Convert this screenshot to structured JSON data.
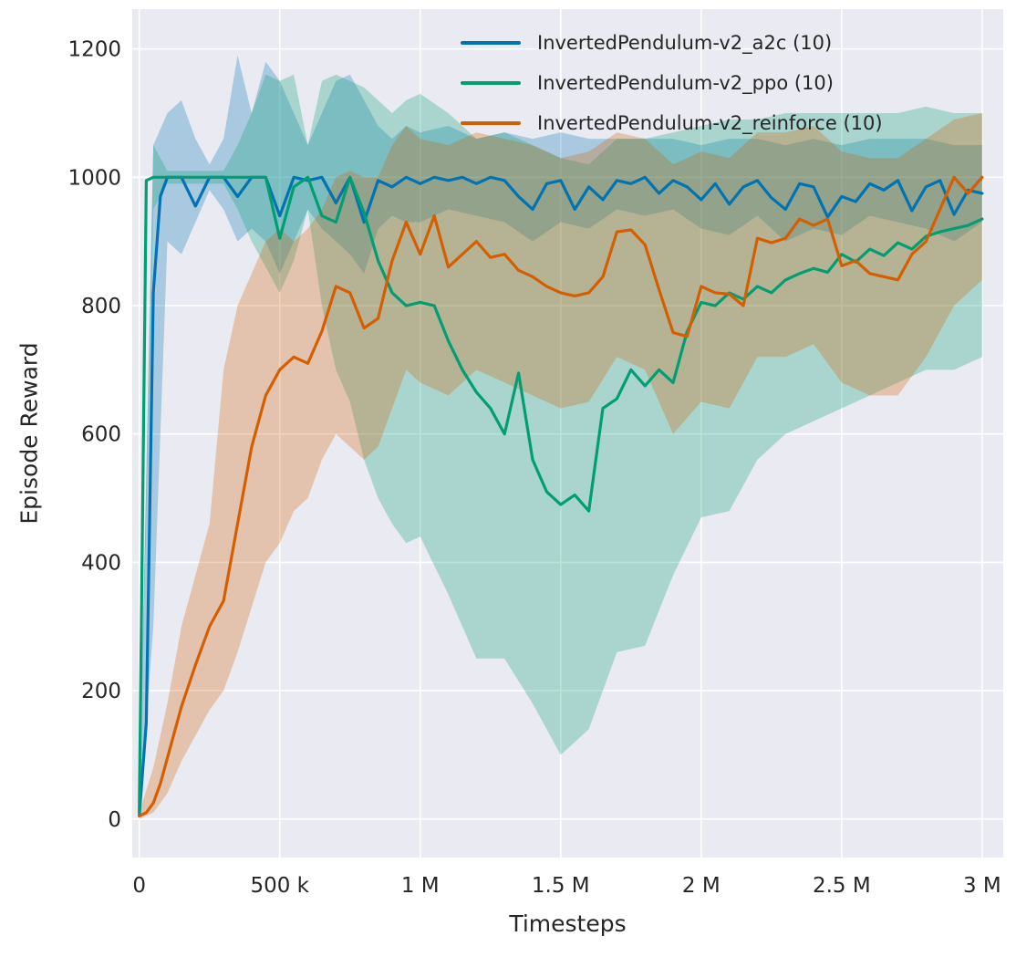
{
  "chart_data": {
    "type": "line",
    "title": "",
    "xlabel": "Timesteps",
    "ylabel": "Episode Reward",
    "xlim": [
      -25000,
      3075000
    ],
    "ylim": [
      -60,
      1262
    ],
    "grid": true,
    "legend_position": "upper center",
    "plot_background": "#eaeaf2",
    "grid_color": "#ffffff",
    "text_color": "#262626",
    "x_unit": 1000,
    "x_ticks": [
      {
        "value": 0,
        "label": "0"
      },
      {
        "value": 500000,
        "label": "500 k"
      },
      {
        "value": 1000000,
        "label": "1 M"
      },
      {
        "value": 1500000,
        "label": "1.5 M"
      },
      {
        "value": 2000000,
        "label": "2 M"
      },
      {
        "value": 2500000,
        "label": "2.5 M"
      },
      {
        "value": 3000000,
        "label": "3 M"
      }
    ],
    "y_ticks": [
      {
        "value": 0,
        "label": "0"
      },
      {
        "value": 200,
        "label": "200"
      },
      {
        "value": 400,
        "label": "400"
      },
      {
        "value": 600,
        "label": "600"
      },
      {
        "value": 800,
        "label": "800"
      },
      {
        "value": 1000,
        "label": "1000"
      },
      {
        "value": 1200,
        "label": "1200"
      }
    ],
    "series": [
      {
        "name": "InvertedPendulum-v2_a2c (10)",
        "color": "#0173b2",
        "line_width": 3.2,
        "band_opacity": 0.28,
        "x_k": [
          0,
          25,
          50,
          75,
          100,
          150,
          200,
          250,
          300,
          350,
          400,
          450,
          500,
          550,
          600,
          650,
          700,
          750,
          800,
          850,
          900,
          950,
          1000,
          1050,
          1100,
          1150,
          1200,
          1250,
          1300,
          1350,
          1400,
          1450,
          1500,
          1550,
          1600,
          1650,
          1700,
          1750,
          1800,
          1850,
          1900,
          1950,
          2000,
          2050,
          2100,
          2150,
          2200,
          2250,
          2300,
          2350,
          2400,
          2450,
          2500,
          2550,
          2600,
          2650,
          2700,
          2750,
          2800,
          2850,
          2900,
          2950,
          3000
        ],
        "y": [
          5,
          150,
          820,
          970,
          1000,
          1000,
          955,
          1000,
          1000,
          970,
          1000,
          1000,
          940,
          1000,
          995,
          1000,
          960,
          1000,
          930,
          995,
          985,
          1000,
          990,
          1000,
          995,
          1000,
          990,
          1000,
          995,
          970,
          950,
          990,
          995,
          950,
          985,
          965,
          995,
          990,
          1000,
          975,
          995,
          985,
          965,
          990,
          958,
          985,
          995,
          968,
          950,
          990,
          985,
          938,
          970,
          962,
          990,
          980,
          995,
          948,
          985,
          995,
          942,
          980,
          975
        ],
        "band": {
          "x_k": [
            0,
            50,
            100,
            150,
            200,
            250,
            300,
            350,
            400,
            450,
            500,
            550,
            600,
            650,
            700,
            750,
            800,
            850,
            900,
            950,
            1000,
            1100,
            1200,
            1300,
            1400,
            1500,
            1600,
            1700,
            1800,
            1900,
            2000,
            2100,
            2200,
            2300,
            2400,
            2500,
            2600,
            2700,
            2800,
            2900,
            3000
          ],
          "lo": [
            0,
            300,
            900,
            880,
            930,
            980,
            950,
            900,
            920,
            900,
            850,
            900,
            950,
            920,
            900,
            880,
            850,
            920,
            940,
            930,
            930,
            950,
            940,
            930,
            900,
            930,
            920,
            950,
            940,
            950,
            920,
            910,
            940,
            900,
            920,
            910,
            940,
            930,
            920,
            900,
            930
          ],
          "hi": [
            10,
            1050,
            1100,
            1120,
            1060,
            1020,
            1060,
            1190,
            1100,
            1180,
            1150,
            1100,
            1050,
            1100,
            1150,
            1160,
            1120,
            1080,
            1060,
            1080,
            1070,
            1080,
            1060,
            1070,
            1060,
            1070,
            1060,
            1060,
            1060,
            1060,
            1050,
            1060,
            1060,
            1050,
            1060,
            1050,
            1060,
            1060,
            1060,
            1050,
            1050
          ]
        }
      },
      {
        "name": "InvertedPendulum-v2_ppo (10)",
        "color": "#029e73",
        "line_width": 3.2,
        "band_opacity": 0.28,
        "x_k": [
          0,
          25,
          50,
          75,
          100,
          150,
          200,
          250,
          300,
          350,
          400,
          450,
          500,
          550,
          600,
          650,
          700,
          750,
          800,
          850,
          900,
          950,
          1000,
          1050,
          1100,
          1150,
          1200,
          1250,
          1300,
          1350,
          1400,
          1450,
          1500,
          1550,
          1600,
          1650,
          1700,
          1750,
          1800,
          1850,
          1900,
          1950,
          2000,
          2050,
          2100,
          2150,
          2200,
          2250,
          2300,
          2350,
          2400,
          2450,
          2500,
          2550,
          2600,
          2650,
          2700,
          2750,
          2800,
          2850,
          2900,
          2950,
          3000
        ],
        "y": [
          10,
          995,
          1000,
          1000,
          1000,
          1000,
          1000,
          1000,
          1000,
          1000,
          1000,
          1000,
          905,
          985,
          1000,
          940,
          930,
          1000,
          945,
          870,
          820,
          800,
          805,
          800,
          745,
          700,
          665,
          640,
          600,
          695,
          560,
          510,
          490,
          505,
          480,
          640,
          655,
          700,
          675,
          700,
          680,
          760,
          805,
          800,
          820,
          810,
          830,
          820,
          840,
          850,
          858,
          852,
          880,
          868,
          888,
          878,
          898,
          888,
          908,
          915,
          920,
          925,
          935
        ],
        "band": {
          "x_k": [
            0,
            50,
            100,
            150,
            200,
            250,
            300,
            350,
            400,
            450,
            500,
            550,
            600,
            650,
            700,
            750,
            800,
            850,
            900,
            950,
            1000,
            1100,
            1200,
            1300,
            1400,
            1500,
            1600,
            1700,
            1800,
            1900,
            2000,
            2100,
            2200,
            2300,
            2400,
            2500,
            2600,
            2700,
            2800,
            2900,
            3000
          ],
          "lo": [
            0,
            950,
            990,
            990,
            990,
            990,
            990,
            950,
            900,
            860,
            820,
            870,
            950,
            800,
            700,
            650,
            560,
            500,
            460,
            430,
            440,
            350,
            250,
            250,
            180,
            100,
            140,
            260,
            270,
            380,
            470,
            480,
            560,
            600,
            620,
            640,
            660,
            680,
            700,
            700,
            720
          ],
          "hi": [
            20,
            1050,
            1010,
            1010,
            1010,
            1010,
            1010,
            1050,
            1100,
            1160,
            1150,
            1160,
            1050,
            1150,
            1160,
            1150,
            1140,
            1120,
            1100,
            1120,
            1130,
            1100,
            1060,
            1070,
            1050,
            1030,
            1020,
            1060,
            1060,
            1070,
            1080,
            1090,
            1090,
            1100,
            1100,
            1100,
            1100,
            1100,
            1110,
            1100,
            1100
          ]
        }
      },
      {
        "name": "InvertedPendulum-v2_reinforce (10)",
        "color": "#d55e00",
        "line_width": 3.2,
        "band_opacity": 0.28,
        "x_k": [
          0,
          25,
          50,
          75,
          100,
          150,
          200,
          250,
          300,
          350,
          400,
          450,
          500,
          550,
          600,
          650,
          700,
          750,
          800,
          850,
          900,
          950,
          1000,
          1050,
          1100,
          1150,
          1200,
          1250,
          1300,
          1350,
          1400,
          1450,
          1500,
          1550,
          1600,
          1650,
          1700,
          1750,
          1800,
          1850,
          1900,
          1950,
          2000,
          2050,
          2100,
          2150,
          2200,
          2250,
          2300,
          2350,
          2400,
          2450,
          2500,
          2550,
          2600,
          2650,
          2700,
          2750,
          2800,
          2850,
          2900,
          2950,
          3000
        ],
        "y": [
          5,
          10,
          25,
          55,
          95,
          175,
          240,
          300,
          340,
          460,
          580,
          660,
          700,
          720,
          710,
          760,
          830,
          820,
          765,
          780,
          870,
          930,
          880,
          940,
          860,
          880,
          900,
          875,
          880,
          855,
          845,
          830,
          820,
          815,
          820,
          845,
          915,
          918,
          895,
          825,
          758,
          752,
          830,
          820,
          818,
          800,
          905,
          898,
          905,
          935,
          925,
          935,
          862,
          870,
          850,
          845,
          840,
          880,
          900,
          950,
          1000,
          975,
          1000
        ],
        "band": {
          "x_k": [
            0,
            50,
            100,
            150,
            200,
            250,
            300,
            350,
            400,
            450,
            500,
            550,
            600,
            650,
            700,
            750,
            800,
            850,
            900,
            950,
            1000,
            1100,
            1200,
            1300,
            1400,
            1500,
            1600,
            1700,
            1800,
            1900,
            2000,
            2100,
            2200,
            2300,
            2400,
            2500,
            2600,
            2700,
            2800,
            2900,
            3000
          ],
          "lo": [
            0,
            10,
            40,
            90,
            130,
            170,
            200,
            260,
            330,
            400,
            430,
            480,
            500,
            560,
            600,
            580,
            560,
            580,
            640,
            700,
            680,
            660,
            700,
            680,
            660,
            640,
            650,
            720,
            700,
            600,
            650,
            640,
            720,
            720,
            740,
            680,
            660,
            660,
            720,
            800,
            840
          ],
          "hi": [
            10,
            80,
            180,
            300,
            380,
            460,
            700,
            800,
            850,
            900,
            920,
            900,
            920,
            950,
            1000,
            1010,
            1000,
            1000,
            1050,
            1080,
            1060,
            1050,
            1070,
            1060,
            1050,
            1030,
            1040,
            1070,
            1060,
            1020,
            1040,
            1030,
            1070,
            1070,
            1080,
            1040,
            1030,
            1030,
            1060,
            1090,
            1100
          ]
        }
      }
    ]
  }
}
